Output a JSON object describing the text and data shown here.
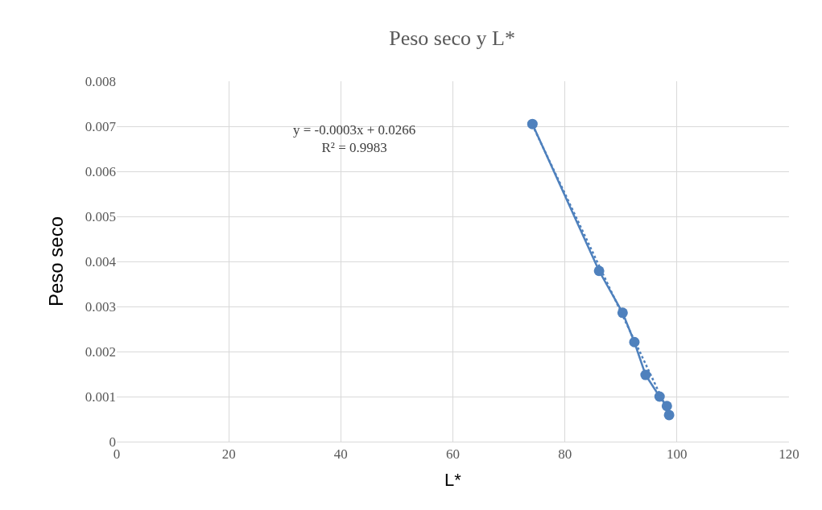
{
  "chart_data": {
    "type": "line",
    "title": "Peso seco y L*",
    "xlabel": "L*",
    "ylabel": "Peso seco",
    "series": [
      {
        "color": "#4f81bd",
        "marker": "circle",
        "line_style": "solid",
        "x": [
          74.2,
          86.1,
          90.3,
          92.4,
          94.4,
          96.9,
          98.2,
          98.6
        ],
        "values": [
          0.00705,
          0.00379,
          0.00286,
          0.00221,
          0.00148,
          0.001,
          0.00079,
          0.00059
        ]
      },
      {
        "type": "line",
        "color": "#4f81bd",
        "marker": "none",
        "line_style": "dotted",
        "x": [
          74.2,
          98.6
        ],
        "values": [
          0.00703,
          0.00062
        ]
      }
    ],
    "annotations": [
      "y = -0.0003x + 0.0266\nR² = 0.9983"
    ],
    "xlim": [
      0,
      120
    ],
    "xticks": [
      0,
      20,
      40,
      60,
      80,
      100,
      120
    ],
    "ylim": [
      0,
      0.008
    ],
    "yticks": [
      0,
      0.001,
      0.002,
      0.003,
      0.004,
      0.005,
      0.006,
      0.007,
      0.008
    ],
    "grid": true
  }
}
